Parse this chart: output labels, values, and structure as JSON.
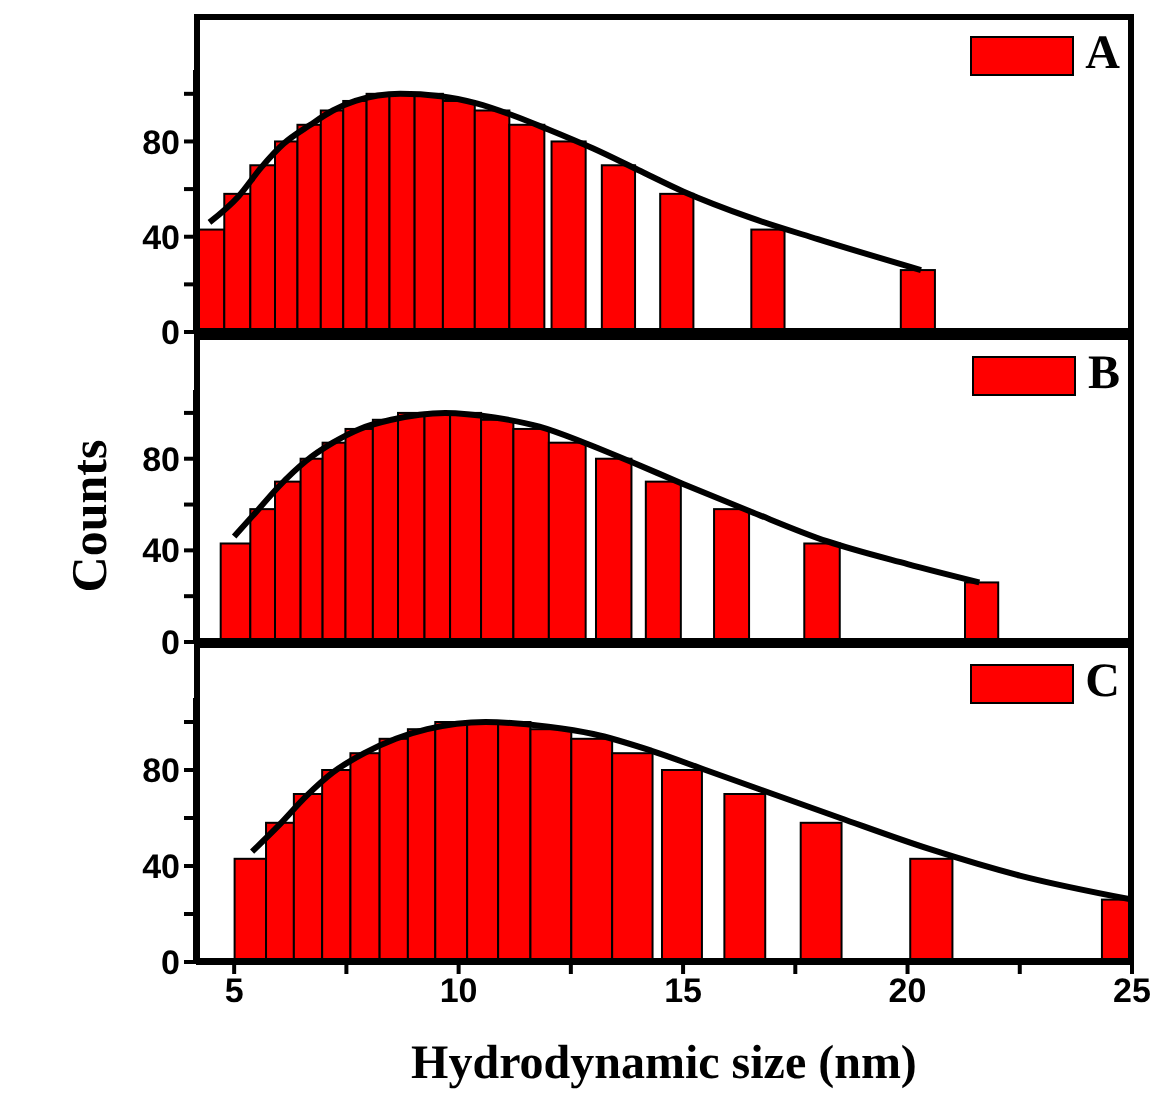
{
  "chart_data": [
    {
      "type": "histogram",
      "bins": [
        4.15,
        4.78,
        5.36,
        5.91,
        6.41,
        6.93,
        7.43,
        7.95,
        8.46,
        9.02,
        9.65,
        10.36,
        11.13,
        11.91,
        12.07,
        12.83,
        13.19,
        13.93,
        14.49,
        15.23,
        16.52,
        17.26,
        19.85,
        20.61
      ],
      "series": [
        {
          "name": "A",
          "color": "#ff0000",
          "values": [
            43,
            58,
            70,
            80,
            87,
            93,
            97,
            100,
            100,
            100,
            97,
            93,
            87,
            null,
            80,
            null,
            70,
            null,
            58,
            null,
            43,
            null,
            26
          ]
        },
        {
          "type": "line",
          "color": "#000000",
          "x": [
            4.45,
            5.1,
            5.6,
            6.1,
            6.7,
            7.2,
            7.7,
            8.7,
            9.6,
            10.4,
            11.2,
            12.0,
            13.0,
            14.0,
            15.0,
            16.5,
            18.0,
            20.3
          ],
          "values": [
            46,
            57,
            69,
            79,
            87,
            93,
            97,
            100,
            99,
            96,
            91,
            85,
            77,
            68,
            59,
            48,
            39,
            26
          ]
        }
      ],
      "xlim": [
        4.15,
        25
      ],
      "xticks": [
        5,
        10,
        15,
        20,
        25
      ],
      "ylim": [
        0,
        110
      ],
      "yticks": [
        0,
        {
          "value": 20,
          "label": null
        },
        40,
        {
          "value": 60,
          "label": null
        },
        80,
        {
          "value": 100,
          "label": null
        }
      ],
      "tick_labels": "y",
      "legend": "top right",
      "marker": "none",
      "line_style": "solid"
    },
    {
      "type": "histogram",
      "ylabel": "Counts",
      "bins": [
        4.7,
        5.36,
        5.91,
        6.48,
        6.97,
        7.48,
        8.09,
        8.65,
        9.24,
        9.81,
        10.5,
        11.22,
        12.01,
        12.83,
        13.06,
        13.85,
        14.17,
        14.95,
        15.69,
        16.47,
        17.7,
        18.49,
        21.28,
        22.02
      ],
      "series": [
        {
          "name": "B",
          "color": "#ff0000",
          "values": [
            43,
            58,
            70,
            80,
            87,
            93,
            97,
            100,
            100,
            100,
            97,
            93,
            87,
            null,
            80,
            null,
            70,
            null,
            58,
            null,
            43,
            null,
            26
          ]
        },
        {
          "type": "line",
          "color": "#000000",
          "x": [
            5.0,
            5.5,
            6.0,
            6.6,
            7.2,
            7.8,
            8.5,
            9.7,
            10.8,
            11.8,
            12.8,
            13.8,
            15.0,
            16.5,
            18.2,
            20.0,
            21.6
          ],
          "values": [
            46,
            57,
            68,
            79,
            87,
            93,
            97,
            100,
            98,
            94,
            87,
            79,
            69,
            57,
            44,
            34,
            26
          ]
        }
      ],
      "xlim": [
        4.15,
        25
      ],
      "xticks": [
        5,
        10,
        15,
        20,
        25
      ],
      "ylim": [
        0,
        110
      ],
      "yticks": [
        0,
        {
          "value": 20,
          "label": null
        },
        40,
        {
          "value": 60,
          "label": null
        },
        80,
        {
          "value": 100,
          "label": null
        }
      ],
      "tick_labels": "y",
      "legend": "top right",
      "marker": "none",
      "line_style": "solid"
    },
    {
      "type": "histogram",
      "xlabel": "Hydrodynamic size (nm)",
      "bins": [
        5.01,
        5.71,
        6.33,
        6.96,
        7.59,
        8.24,
        8.87,
        9.48,
        10.19,
        10.88,
        11.6,
        12.51,
        13.42,
        14.32,
        14.53,
        15.42,
        15.92,
        16.83,
        17.62,
        18.53,
        20.06,
        21.0,
        24.33,
        25
      ],
      "series": [
        {
          "name": "C",
          "color": "#ff0000",
          "values": [
            43,
            58,
            70,
            80,
            87,
            93,
            97,
            100,
            100,
            100,
            97,
            93,
            87,
            null,
            80,
            null,
            70,
            null,
            58,
            null,
            43,
            null,
            26
          ]
        },
        {
          "type": "line",
          "color": "#000000",
          "x": [
            5.4,
            6.0,
            6.6,
            7.2,
            7.9,
            8.6,
            9.3,
            10.6,
            12.0,
            13.0,
            14.3,
            15.5,
            17.0,
            18.5,
            20.5,
            22.5,
            25.0
          ],
          "values": [
            46,
            57,
            69,
            79,
            87,
            93,
            97,
            100,
            98,
            95,
            88,
            80,
            70,
            60,
            47,
            36,
            26
          ]
        }
      ],
      "xlim": [
        4.15,
        25
      ],
      "xticks": [
        5,
        {
          "value": 7.5,
          "label": null
        },
        10,
        {
          "value": 12.5,
          "label": null
        },
        15,
        {
          "value": 17.5,
          "label": null
        },
        20,
        {
          "value": 22.5,
          "label": null
        },
        25
      ],
      "ylim": [
        0,
        110
      ],
      "yticks": [
        0,
        {
          "value": 20,
          "label": null
        },
        40,
        {
          "value": 60,
          "label": null
        },
        80,
        {
          "value": 100,
          "label": null
        }
      ],
      "legend": "top right",
      "marker": "none",
      "line_style": "solid"
    }
  ]
}
